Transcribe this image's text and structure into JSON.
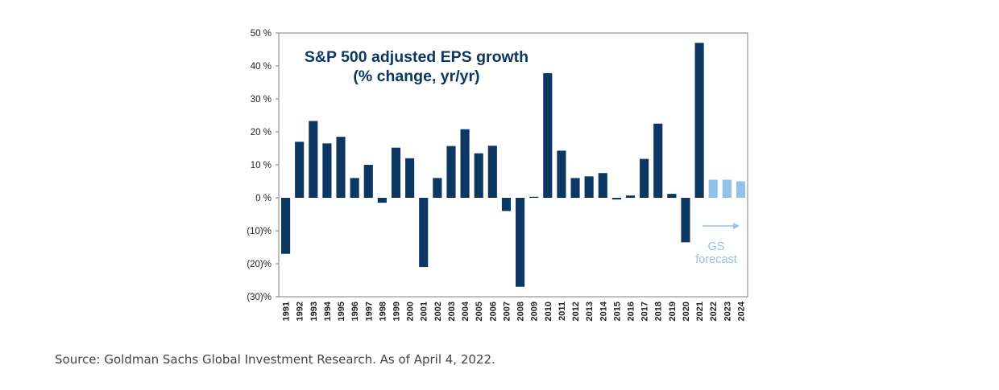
{
  "chart_data": {
    "type": "bar",
    "title": "S&P 500  adjusted EPS growth",
    "subtitle": "(% change, yr/yr)",
    "categories": [
      "1991",
      "1992",
      "1993",
      "1994",
      "1995",
      "1996",
      "1997",
      "1998",
      "1999",
      "2000",
      "2001",
      "2002",
      "2003",
      "2004",
      "2005",
      "2006",
      "2007",
      "2008",
      "2009",
      "2010",
      "2011",
      "2012",
      "2013",
      "2014",
      "2015",
      "2016",
      "2017",
      "2018",
      "2019",
      "2020",
      "2021",
      "2022",
      "2023",
      "2024"
    ],
    "values": [
      -17,
      17,
      23.3,
      16.5,
      18.5,
      6,
      10,
      -1.5,
      15.2,
      12,
      -21,
      6,
      15.7,
      20.8,
      13.5,
      15.8,
      -4,
      -27,
      0.3,
      37.8,
      14.3,
      6,
      6.5,
      7.5,
      -0.5,
      0.7,
      11.8,
      22.5,
      1.2,
      -13.5,
      47,
      5.5,
      5.5,
      5
    ],
    "forecast_from": "2022",
    "ylim": [
      -30,
      50
    ],
    "yticks": [
      -30,
      -20,
      -10,
      0,
      10,
      20,
      30,
      40,
      50
    ],
    "ytick_labels": [
      "(30)%",
      "(20)%",
      "(10)%",
      "0 %",
      "10 %",
      "20 %",
      "30 %",
      "40 %",
      "50 %"
    ],
    "annotation": [
      "GS",
      "forecast"
    ],
    "colors": {
      "actual": "#0c3762",
      "forecast": "#92c2e8",
      "axis": "#7f7f7f",
      "text": "#1f1f1f"
    },
    "grid": false
  },
  "source": "Source: Goldman Sachs Global Investment Research. As of April 4, 2022."
}
